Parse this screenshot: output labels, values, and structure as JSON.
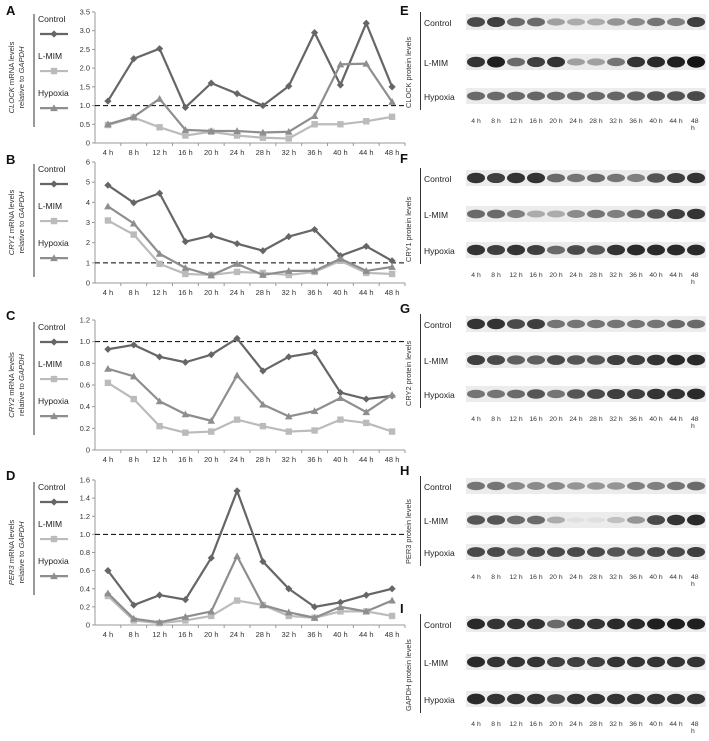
{
  "time_labels": [
    "4 h",
    "8 h",
    "12 h",
    "16 h",
    "20 h",
    "24 h",
    "28 h",
    "32 h",
    "36 h",
    "40 h",
    "44 h",
    "48 h"
  ],
  "legend": {
    "control": "Control",
    "lmim": "L-MIM",
    "hypoxia": "Hypoxia"
  },
  "colors": {
    "control": "#666666",
    "lmim": "#bbbbbb",
    "hypoxia": "#8e8e8e",
    "dash": "#000000"
  },
  "chart_data": [
    {
      "panel": "A",
      "type": "line",
      "ylabel_gene": "CLOCK",
      "ylabel_rest1": " mRNA levels",
      "ylabel_line2": "relative to ",
      "ylabel_ref": "GAPDH",
      "ylim": [
        0,
        3.5
      ],
      "yticks": [
        "0",
        "0.5",
        "1.0",
        "1.5",
        "2.0",
        "2.5",
        "3.0",
        "3.5"
      ],
      "ytick_values": [
        0,
        0.5,
        1.0,
        1.5,
        2.0,
        2.5,
        3.0,
        3.5
      ],
      "reference_line": 1.0,
      "series": [
        {
          "name": "Control",
          "marker": "diamond",
          "values": [
            1.12,
            2.25,
            2.52,
            0.95,
            1.6,
            1.32,
            1.0,
            1.52,
            2.95,
            1.55,
            3.2,
            1.5
          ]
        },
        {
          "name": "L-MIM",
          "marker": "square",
          "values": [
            0.48,
            0.68,
            0.42,
            0.2,
            0.3,
            0.2,
            0.14,
            0.12,
            0.5,
            0.5,
            0.58,
            0.7
          ]
        },
        {
          "name": "Hypoxia",
          "marker": "triangle",
          "values": [
            0.5,
            0.7,
            1.18,
            0.35,
            0.32,
            0.32,
            0.28,
            0.3,
            0.72,
            2.1,
            2.12,
            1.1
          ]
        }
      ]
    },
    {
      "panel": "B",
      "type": "line",
      "ylabel_gene": "CRY1",
      "ylabel_rest1": " mRNA levels",
      "ylabel_line2": "relative to ",
      "ylabel_ref": "GAPDH",
      "ylim": [
        0,
        6
      ],
      "yticks": [
        "0",
        "1",
        "2",
        "3",
        "4",
        "5",
        "6"
      ],
      "ytick_values": [
        0,
        1,
        2,
        3,
        4,
        5,
        6
      ],
      "reference_line": 1.0,
      "series": [
        {
          "name": "Control",
          "marker": "diamond",
          "values": [
            4.85,
            3.98,
            4.45,
            2.05,
            2.35,
            1.95,
            1.6,
            2.3,
            2.65,
            1.35,
            1.82,
            1.1
          ]
        },
        {
          "name": "L-MIM",
          "marker": "square",
          "values": [
            3.1,
            2.4,
            0.95,
            0.45,
            0.4,
            0.55,
            0.5,
            0.4,
            0.55,
            1.1,
            0.5,
            0.45
          ]
        },
        {
          "name": "Hypoxia",
          "marker": "triangle",
          "values": [
            3.8,
            2.95,
            1.45,
            0.75,
            0.38,
            0.95,
            0.4,
            0.6,
            0.6,
            1.2,
            0.6,
            0.8
          ]
        }
      ]
    },
    {
      "panel": "C",
      "type": "line",
      "ylabel_gene": "CRY2",
      "ylabel_rest1": " mRNA levels",
      "ylabel_line2": "relative to ",
      "ylabel_ref": "GAPDH",
      "ylim": [
        0,
        1.2
      ],
      "yticks": [
        "0",
        "0.2",
        "0.4",
        "0.6",
        "0.8",
        "1.0",
        "1.2"
      ],
      "ytick_values": [
        0,
        0.2,
        0.4,
        0.6,
        0.8,
        1.0,
        1.2
      ],
      "reference_line": 1.0,
      "series": [
        {
          "name": "Control",
          "marker": "diamond",
          "values": [
            0.93,
            0.97,
            0.86,
            0.81,
            0.88,
            1.03,
            0.73,
            0.86,
            0.9,
            0.53,
            0.47,
            0.5
          ]
        },
        {
          "name": "L-MIM",
          "marker": "square",
          "values": [
            0.62,
            0.47,
            0.22,
            0.16,
            0.17,
            0.28,
            0.22,
            0.17,
            0.18,
            0.28,
            0.25,
            0.17
          ]
        },
        {
          "name": "Hypoxia",
          "marker": "triangle",
          "values": [
            0.75,
            0.68,
            0.45,
            0.33,
            0.27,
            0.69,
            0.42,
            0.31,
            0.36,
            0.48,
            0.35,
            0.51
          ]
        }
      ]
    },
    {
      "panel": "D",
      "type": "line",
      "ylabel_gene": "PER3",
      "ylabel_rest1": " mRNA levels",
      "ylabel_line2": "relative to ",
      "ylabel_ref": "GAPDH",
      "ylim": [
        0,
        1.6
      ],
      "yticks": [
        "0",
        "0.2",
        "0.4",
        "0.6",
        "0.8",
        "1.0",
        "1.2",
        "1.4",
        "1.6"
      ],
      "ytick_values": [
        0,
        0.2,
        0.4,
        0.6,
        0.8,
        1.0,
        1.2,
        1.4,
        1.6
      ],
      "reference_line": 1.0,
      "series": [
        {
          "name": "Control",
          "marker": "diamond",
          "values": [
            0.6,
            0.22,
            0.33,
            0.28,
            0.74,
            1.48,
            0.7,
            0.4,
            0.2,
            0.25,
            0.33,
            0.4
          ]
        },
        {
          "name": "L-MIM",
          "marker": "square",
          "values": [
            0.32,
            0.05,
            0.02,
            0.05,
            0.1,
            0.27,
            0.22,
            0.1,
            0.08,
            0.15,
            0.15,
            0.1
          ]
        },
        {
          "name": "Hypoxia",
          "marker": "triangle",
          "values": [
            0.35,
            0.07,
            0.03,
            0.09,
            0.15,
            0.76,
            0.22,
            0.14,
            0.08,
            0.2,
            0.15,
            0.27
          ]
        }
      ]
    }
  ],
  "blots": [
    {
      "panel": "E",
      "ylabel": "CLOCK protein levels",
      "rows": [
        "Control",
        "L-MIM",
        "Hypoxia"
      ],
      "intensity": [
        [
          0.75,
          0.8,
          0.6,
          0.6,
          0.35,
          0.3,
          0.3,
          0.4,
          0.45,
          0.55,
          0.5,
          0.8
        ],
        [
          0.85,
          0.95,
          0.6,
          0.8,
          0.85,
          0.35,
          0.35,
          0.55,
          0.85,
          0.9,
          0.95,
          1.0
        ],
        [
          0.6,
          0.6,
          0.6,
          0.62,
          0.6,
          0.6,
          0.6,
          0.62,
          0.65,
          0.7,
          0.7,
          0.75
        ]
      ]
    },
    {
      "panel": "F",
      "ylabel": "CRY1 protein levels",
      "rows": [
        "Control",
        "L-MIM",
        "Hypoxia"
      ],
      "intensity": [
        [
          0.85,
          0.8,
          0.85,
          0.85,
          0.6,
          0.55,
          0.6,
          0.55,
          0.5,
          0.7,
          0.8,
          0.85
        ],
        [
          0.6,
          0.6,
          0.5,
          0.3,
          0.3,
          0.45,
          0.55,
          0.5,
          0.6,
          0.7,
          0.8,
          0.85
        ],
        [
          0.85,
          0.8,
          0.85,
          0.8,
          0.6,
          0.75,
          0.7,
          0.85,
          0.9,
          0.9,
          0.9,
          0.9
        ]
      ]
    },
    {
      "panel": "G",
      "ylabel": "CRY2 protein levels",
      "rows": [
        "Control",
        "L-MIM",
        "Hypoxia"
      ],
      "intensity": [
        [
          0.85,
          0.85,
          0.75,
          0.8,
          0.55,
          0.55,
          0.55,
          0.55,
          0.55,
          0.55,
          0.6,
          0.6
        ],
        [
          0.8,
          0.75,
          0.65,
          0.65,
          0.75,
          0.7,
          0.7,
          0.8,
          0.8,
          0.85,
          0.9,
          0.9
        ],
        [
          0.55,
          0.55,
          0.6,
          0.7,
          0.55,
          0.7,
          0.75,
          0.8,
          0.8,
          0.85,
          0.85,
          0.9
        ]
      ]
    },
    {
      "panel": "H",
      "ylabel": "PER3 protein levels",
      "rows": [
        "Control",
        "L-MIM",
        "Hypoxia"
      ],
      "intensity": [
        [
          0.55,
          0.55,
          0.45,
          0.45,
          0.45,
          0.4,
          0.4,
          0.4,
          0.5,
          0.5,
          0.55,
          0.6
        ],
        [
          0.7,
          0.7,
          0.6,
          0.6,
          0.3,
          0.05,
          0.05,
          0.2,
          0.4,
          0.75,
          0.85,
          0.9
        ],
        [
          0.75,
          0.75,
          0.65,
          0.75,
          0.75,
          0.75,
          0.75,
          0.7,
          0.7,
          0.75,
          0.75,
          0.8
        ]
      ]
    },
    {
      "panel": "I",
      "ylabel": "GAPDH protein levels",
      "rows": [
        "Control",
        "L-MIM",
        "Hypoxia"
      ],
      "intensity": [
        [
          0.9,
          0.85,
          0.85,
          0.85,
          0.6,
          0.85,
          0.85,
          0.9,
          0.9,
          0.95,
          0.95,
          0.95
        ],
        [
          0.9,
          0.85,
          0.85,
          0.85,
          0.8,
          0.8,
          0.8,
          0.85,
          0.85,
          0.85,
          0.85,
          0.85
        ],
        [
          0.9,
          0.85,
          0.85,
          0.85,
          0.75,
          0.85,
          0.85,
          0.85,
          0.85,
          0.85,
          0.85,
          0.85
        ]
      ]
    }
  ]
}
